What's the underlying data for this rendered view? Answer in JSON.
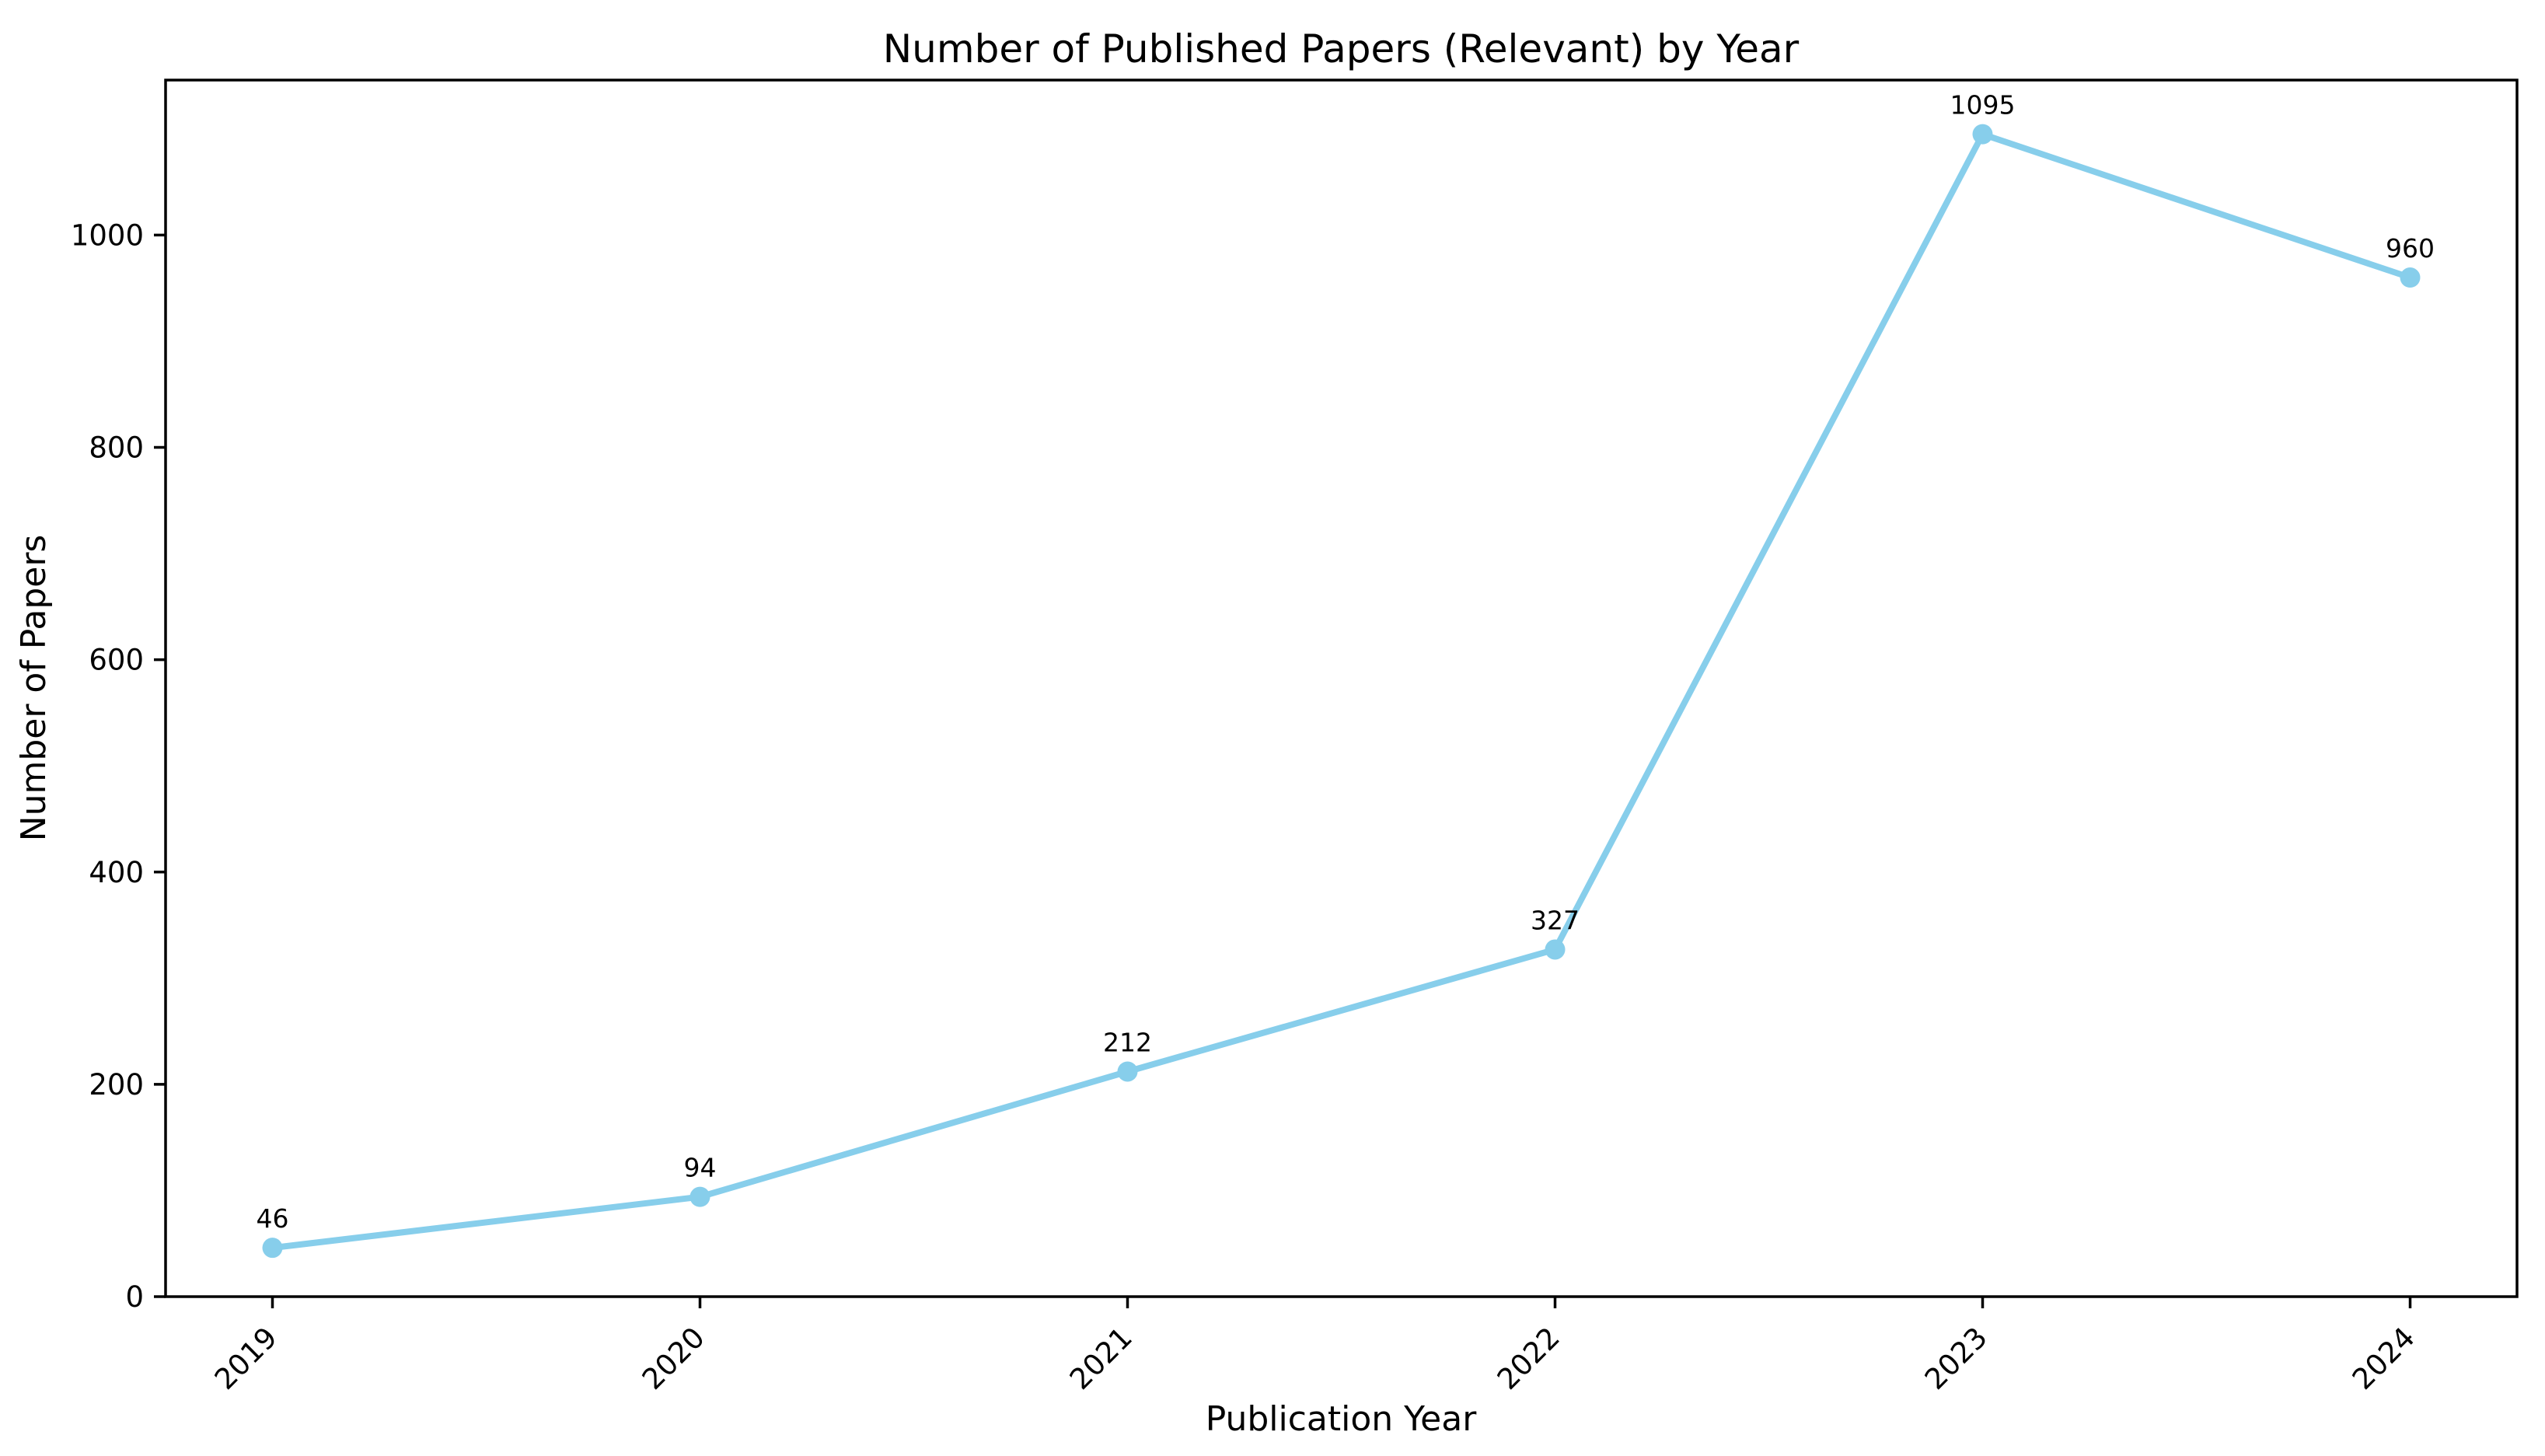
{
  "chart_data": {
    "type": "line",
    "title": "Number of Published Papers (Relevant) by Year",
    "xlabel": "Publication Year",
    "ylabel": "Number of Papers",
    "categories": [
      "2019",
      "2020",
      "2021",
      "2022",
      "2023",
      "2024"
    ],
    "values": [
      46,
      94,
      212,
      327,
      1095,
      960
    ],
    "point_labels": [
      "46",
      "94",
      "212",
      "327",
      "1095",
      "960"
    ],
    "yticks": [
      0,
      200,
      400,
      600,
      800,
      1000
    ],
    "ylim": [
      0,
      1146
    ],
    "x_tick_rotation": 45,
    "grid": false,
    "legend": "none",
    "line_color": "#87CEEB",
    "marker_color": "#87CEEB",
    "marker_shape": "circle",
    "spine_color": "#000000",
    "text_color": "#000000",
    "background_color": "#ffffff"
  }
}
